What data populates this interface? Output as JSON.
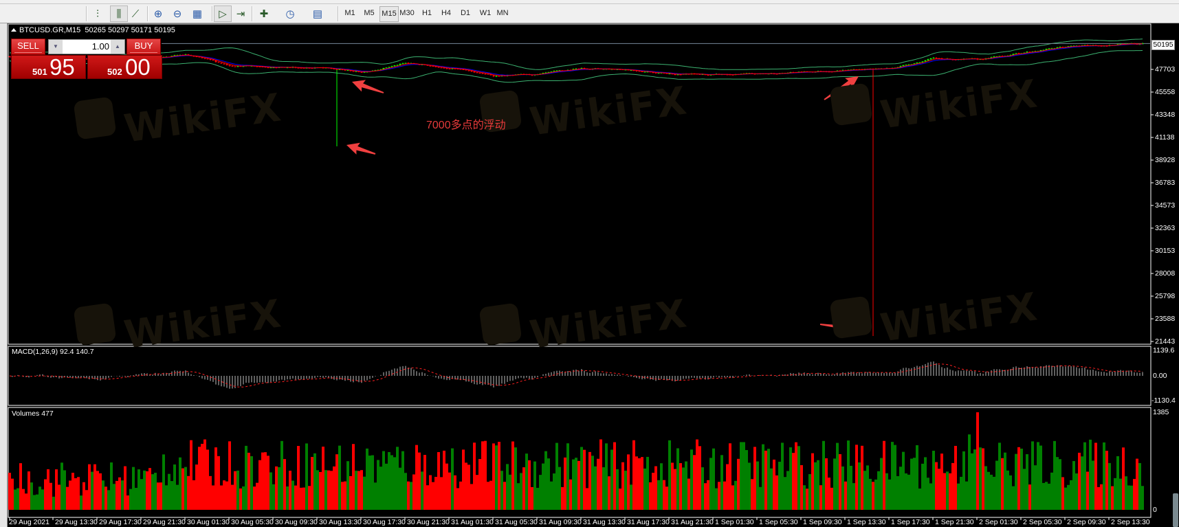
{
  "toolbar": {
    "icons": [
      "bar-chart-icon",
      "candlestick-chart-icon",
      "line-chart-icon",
      "zoom-in-icon",
      "zoom-out-icon",
      "tile-windows-icon",
      "auto-scroll-icon",
      "chart-shift-icon",
      "indicators-icon",
      "periods-clock-icon",
      "templates-icon"
    ],
    "timeframes": [
      "M1",
      "M5",
      "M15",
      "M30",
      "H1",
      "H4",
      "D1",
      "W1",
      "MN"
    ],
    "active_timeframe": "M15"
  },
  "chart": {
    "symbol_line": "BTCUSD.GR,M15  50265 50297 50171 50195",
    "current_price": "50195",
    "price_axis": [
      "47703",
      "45558",
      "43348",
      "41138",
      "38928",
      "36783",
      "34573",
      "32363",
      "30153",
      "28008",
      "25798",
      "23588",
      "21443"
    ],
    "annotation": "7000多点的浮动",
    "price_path": [
      {
        "time": "29 Aug 09:30",
        "price": 48960
      },
      {
        "time": "29 Aug 13:30",
        "price": 48830
      },
      {
        "time": "29 Aug 17:30",
        "price": 48600
      },
      {
        "time": "29 Aug 21:30",
        "price": 48760
      },
      {
        "time": "30 Aug 01:30",
        "price": 49100
      },
      {
        "time": "30 Aug 05:30",
        "price": 48100
      },
      {
        "time": "30 Aug 09:30",
        "price": 47940
      },
      {
        "time": "30 Aug 13:30",
        "price": 47870
      },
      {
        "time": "30 Aug 17:30",
        "price": 47440
      },
      {
        "time": "30 Aug 21:30",
        "price": 48300
      },
      {
        "time": "31 Aug 01:30",
        "price": 47870
      },
      {
        "time": "31 Aug 05:30",
        "price": 47080
      },
      {
        "time": "31 Aug 09:30",
        "price": 47170
      },
      {
        "time": "31 Aug 13:30",
        "price": 47800
      },
      {
        "time": "31 Aug 17:30",
        "price": 47730
      },
      {
        "time": "31 Aug 21:30",
        "price": 47300
      },
      {
        "time": "1 Sep 01:30",
        "price": 47170
      },
      {
        "time": "1 Sep 05:30",
        "price": 47240
      },
      {
        "time": "1 Sep 09:30",
        "price": 47440
      },
      {
        "time": "1 Sep 13:30",
        "price": 47650
      },
      {
        "time": "1 Sep 17:30",
        "price": 47800
      },
      {
        "time": "1 Sep 21:30",
        "price": 48760
      },
      {
        "time": "2 Sep 01:30",
        "price": 48600
      },
      {
        "time": "2 Sep 05:30",
        "price": 49320
      },
      {
        "time": "2 Sep 09:30",
        "price": 49900
      },
      {
        "time": "2 Sep 13:30",
        "price": 50050
      },
      {
        "time": "2 Sep 16:45",
        "price": 50195
      }
    ],
    "spikes": [
      {
        "time": "30 Aug 15:15",
        "low": 40280,
        "color": "#00ff00"
      },
      {
        "time": "1 Sep 14:00",
        "low": 21970,
        "color": "#ff0000"
      }
    ]
  },
  "trade_panel": {
    "sell_label": "SELL",
    "buy_label": "BUY",
    "lots": "1.00",
    "sell_price_small": "501",
    "sell_price_big": "95",
    "buy_price_small": "502",
    "buy_price_big": "00"
  },
  "macd": {
    "label": "MACD(1,26,9) 92.4 140.7",
    "axis": [
      "1139.6",
      "0.00",
      "-1130.4"
    ]
  },
  "volumes": {
    "label": "Volumes 477",
    "axis": [
      "1385",
      "0"
    ]
  },
  "time_axis": [
    "29 Aug 2021",
    "29 Aug 13:30",
    "29 Aug 17:30",
    "29 Aug 21:30",
    "30 Aug 01:30",
    "30 Aug 05:30",
    "30 Aug 09:30",
    "30 Aug 13:30",
    "30 Aug 17:30",
    "30 Aug 21:30",
    "31 Aug 01:30",
    "31 Aug 05:30",
    "31 Aug 09:30",
    "31 Aug 13:30",
    "31 Aug 17:30",
    "31 Aug 21:30",
    "1 Sep 01:30",
    "1 Sep 05:30",
    "1 Sep 09:30",
    "1 Sep 13:30",
    "1 Sep 17:30",
    "1 Sep 21:30",
    "2 Sep 01:30",
    "2 Sep 05:30",
    "2 Sep 09:30",
    "2 Sep 13:30"
  ],
  "watermark": "WikiFX",
  "colors": {
    "bull": "#00ff00",
    "bear": "#ff0000",
    "ma_fast": "#ff0000",
    "ma_slow": "#0000ff",
    "bands": "#3cb371",
    "macd_hist": "#c0c0c0",
    "macd_signal": "#ff2020",
    "vol_up": "#008000",
    "vol_down": "#ff0000",
    "annotation": "#e53a3a"
  }
}
